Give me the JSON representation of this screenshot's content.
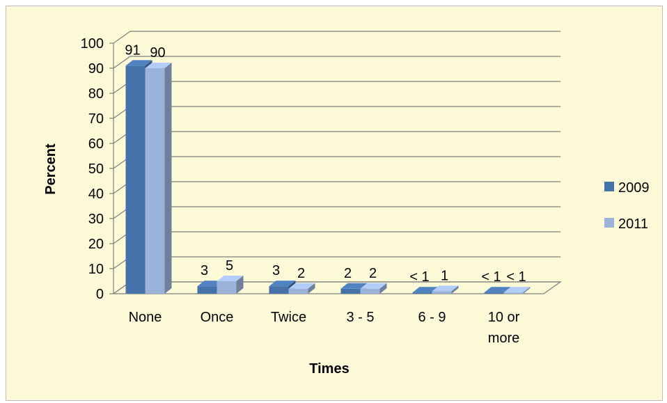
{
  "chart_data": {
    "type": "bar",
    "variant": "3d-clustered-column",
    "categories": [
      "None",
      "Once",
      "Twice",
      "3 - 5",
      "6 - 9",
      "10 or more"
    ],
    "category_lines": [
      [
        "None"
      ],
      [
        "Once"
      ],
      [
        "Twice"
      ],
      [
        "3 - 5"
      ],
      [
        "6 - 9"
      ],
      [
        "10 or",
        "more"
      ]
    ],
    "series": [
      {
        "name": "2009",
        "values": [
          91,
          3,
          3,
          2,
          0.5,
          0.5
        ],
        "labels": [
          "91",
          "3",
          "3",
          "2",
          "< 1",
          "< 1"
        ],
        "color": "#4672aa"
      },
      {
        "name": "2011",
        "values": [
          90,
          5,
          2,
          2,
          1,
          0.5
        ],
        "labels": [
          "90",
          "5",
          "2",
          "2",
          "1",
          "< 1"
        ],
        "color": "#9bb2d9"
      }
    ],
    "xlabel": "Times",
    "ylabel": "Percent",
    "ylim": [
      0,
      100
    ],
    "yticks": [
      "0",
      "10",
      "20",
      "30",
      "40",
      "50",
      "60",
      "70",
      "80",
      "90",
      "100"
    ],
    "grid": true,
    "legend_position": "right",
    "background": "#fdfbd7"
  }
}
